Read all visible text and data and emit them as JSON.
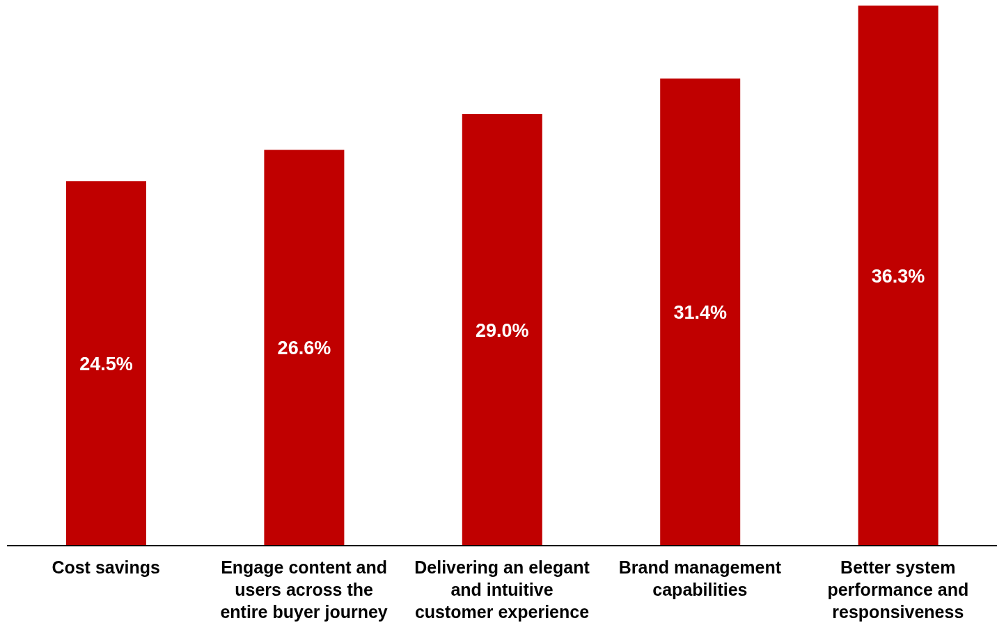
{
  "chart_data": {
    "type": "bar",
    "categories": [
      "Cost savings",
      "Engage content and users across the entire buyer journey",
      "Delivering an elegant and intuitive customer experience",
      "Brand management capabilities",
      "Better system performance and responsiveness"
    ],
    "values": [
      24.5,
      26.6,
      29.0,
      31.4,
      36.3
    ],
    "value_labels": [
      "24.5%",
      "26.6%",
      "29.0%",
      "31.4%",
      "36.3%"
    ],
    "color": "#c00000",
    "grid": false,
    "legend": false,
    "tick_labels": "x"
  }
}
